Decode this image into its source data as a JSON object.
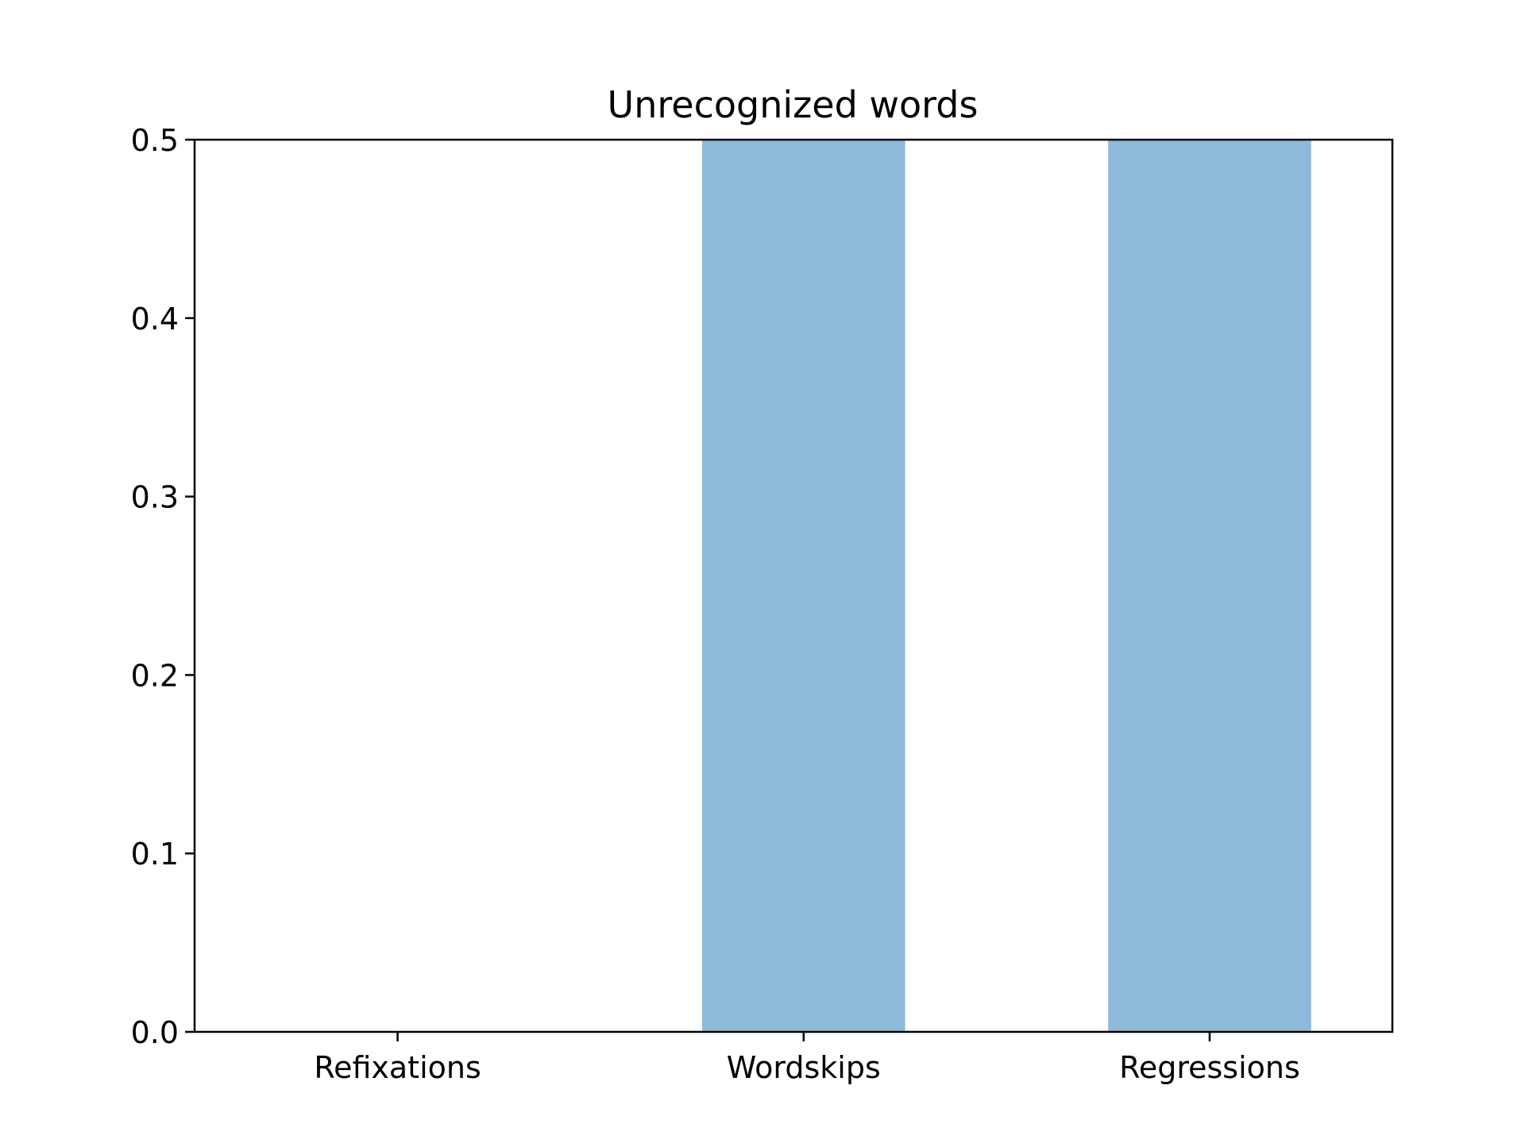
{
  "chart_data": {
    "type": "bar",
    "title": "Unrecognized words",
    "xlabel": "",
    "ylabel": "",
    "categories": [
      "Refixations",
      "Wordskips",
      "Regressions"
    ],
    "values": [
      0.0,
      0.5,
      0.5
    ],
    "ylim": [
      0,
      0.5
    ],
    "yticks": [
      "0.0",
      "0.1",
      "0.2",
      "0.3",
      "0.4",
      "0.5"
    ],
    "bar_color": "#8fb9d8",
    "grid": false,
    "legend": "none"
  }
}
